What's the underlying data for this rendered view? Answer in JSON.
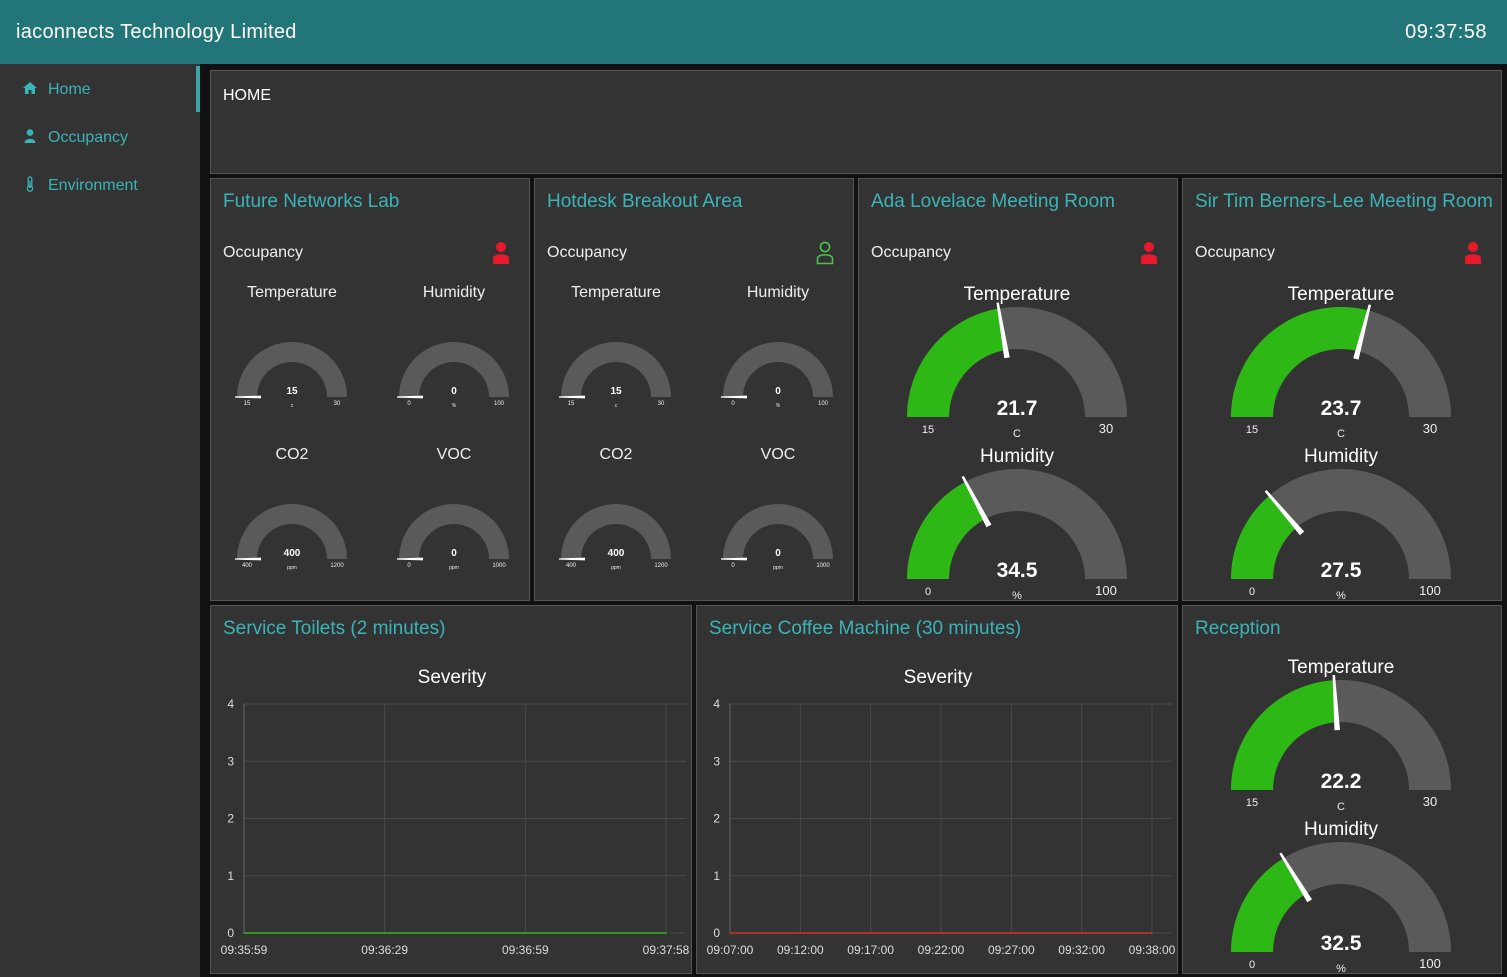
{
  "header": {
    "title": "iaconnects Technology Limited",
    "clock": "09:37:58"
  },
  "sidebar": {
    "items": [
      {
        "label": "Home",
        "icon": "home-icon",
        "selected": true
      },
      {
        "label": "Occupancy",
        "icon": "user-icon",
        "selected": false
      },
      {
        "label": "Environment",
        "icon": "thermometer-icon",
        "selected": false
      }
    ]
  },
  "home": {
    "text": "HOME"
  },
  "colors": {
    "accent": "#3ab4b8",
    "header": "#227679",
    "gauge_fill": "#2db816",
    "gauge_track": "#5a5a5a",
    "occupied": "#e8192c",
    "vacant": "#4cc44c"
  },
  "rooms": [
    {
      "title": "Future Networks Lab",
      "occupancy_label": "Occupancy",
      "occupied": true,
      "gauges": [
        {
          "label": "Temperature",
          "value": 15,
          "display": "15",
          "unit": "c",
          "min": 15,
          "max": 30
        },
        {
          "label": "Humidity",
          "value": 0,
          "display": "0",
          "unit": "%",
          "min": 0,
          "max": 100
        },
        {
          "label": "CO2",
          "value": 400,
          "display": "400",
          "unit": "ppm",
          "min": 400,
          "max": 1200
        },
        {
          "label": "VOC",
          "value": 0,
          "display": "0",
          "unit": "ppm",
          "min": 0,
          "max": 1000
        }
      ]
    },
    {
      "title": "Hotdesk Breakout Area",
      "occupancy_label": "Occupancy",
      "occupied": false,
      "gauges": [
        {
          "label": "Temperature",
          "value": 15,
          "display": "15",
          "unit": "c",
          "min": 15,
          "max": 30
        },
        {
          "label": "Humidity",
          "value": 0,
          "display": "0",
          "unit": "%",
          "min": 0,
          "max": 100
        },
        {
          "label": "CO2",
          "value": 400,
          "display": "400",
          "unit": "ppm",
          "min": 400,
          "max": 1200
        },
        {
          "label": "VOC",
          "value": 0,
          "display": "0",
          "unit": "ppm",
          "min": 0,
          "max": 1000
        }
      ]
    },
    {
      "title": "Ada Lovelace Meeting Room",
      "occupancy_label": "Occupancy",
      "occupied": true,
      "gauges": [
        {
          "label": "Temperature",
          "value": 21.7,
          "display": "21.7",
          "unit": "C",
          "min": 15,
          "max": 30
        },
        {
          "label": "Humidity",
          "value": 34.5,
          "display": "34.5",
          "unit": "%",
          "min": 0,
          "max": 100
        }
      ]
    },
    {
      "title": "Sir Tim Berners-Lee Meeting Room",
      "occupancy_label": "Occupancy",
      "occupied": true,
      "gauges": [
        {
          "label": "Temperature",
          "value": 23.7,
          "display": "23.7",
          "unit": "C",
          "min": 15,
          "max": 30
        },
        {
          "label": "Humidity",
          "value": 27.5,
          "display": "27.5",
          "unit": "%",
          "min": 0,
          "max": 100
        }
      ]
    }
  ],
  "reception": {
    "title": "Reception",
    "gauges": [
      {
        "label": "Temperature",
        "value": 22.2,
        "display": "22.2",
        "unit": "C",
        "min": 15,
        "max": 30
      },
      {
        "label": "Humidity",
        "value": 32.5,
        "display": "32.5",
        "unit": "%",
        "min": 0,
        "max": 100
      }
    ]
  },
  "charts": [
    {
      "title": "Service Toilets (2 minutes)",
      "chart_title": "Severity",
      "line_color": "#2db816"
    },
    {
      "title": "Service Coffee Machine (30 minutes)",
      "chart_title": "Severity",
      "line_color": "#d03030"
    }
  ],
  "chart_data": [
    {
      "type": "line",
      "title": "Severity",
      "x": [
        "09:35:59",
        "09:36:29",
        "09:36:59",
        "09:37:58"
      ],
      "x_ticks": [
        "09:35:59",
        "09:36:29",
        "09:36:59",
        "09:37:58"
      ],
      "series": [
        {
          "values": [
            0,
            0,
            0,
            0
          ]
        }
      ],
      "ylim": [
        0,
        4
      ],
      "y_ticks": [
        0,
        1,
        2,
        3,
        4
      ],
      "grid": true
    },
    {
      "type": "line",
      "title": "Severity",
      "x": [
        "09:07:00",
        "09:12:00",
        "09:17:00",
        "09:22:00",
        "09:27:00",
        "09:32:00",
        "09:38:00"
      ],
      "x_ticks": [
        "09:07:00",
        "09:12:00",
        "09:17:00",
        "09:22:00",
        "09:27:00",
        "09:32:00",
        "09:38:00"
      ],
      "series": [
        {
          "values": [
            0,
            0,
            0,
            0,
            0,
            0,
            0
          ]
        }
      ],
      "ylim": [
        0,
        4
      ],
      "y_ticks": [
        0,
        1,
        2,
        3,
        4
      ],
      "grid": true
    }
  ]
}
